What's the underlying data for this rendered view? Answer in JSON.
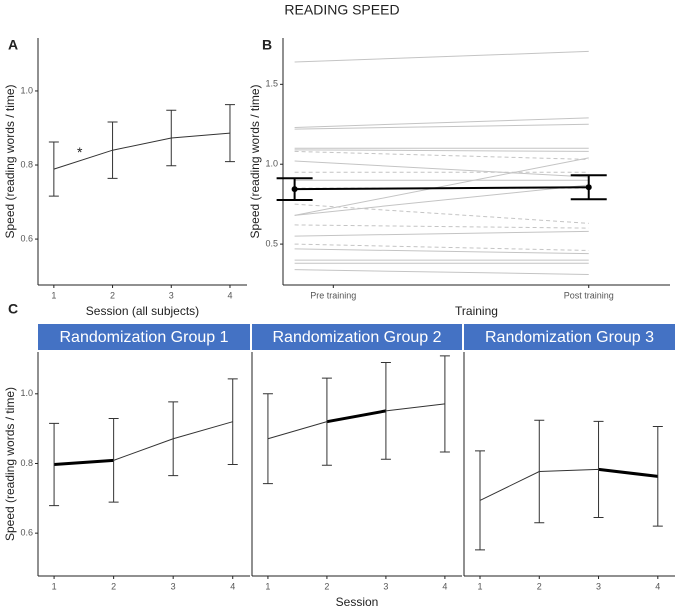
{
  "title": "READING SPEED",
  "chart_data": [
    {
      "type": "line",
      "panel": "A",
      "x": [
        1,
        2,
        3,
        4
      ],
      "values": [
        0.789,
        0.84,
        0.873,
        0.886
      ],
      "errors": [
        0.073,
        0.076,
        0.075,
        0.077
      ],
      "xlim": [
        0.73,
        4.29
      ],
      "xticks": [
        1,
        2,
        3,
        4
      ],
      "ylim": [
        0.476,
        1.143
      ],
      "yticks": [
        0.6,
        0.8,
        {
          "value": 1,
          "label": "1.0"
        }
      ],
      "xlabel": "Session (all subjects)",
      "ylabel": "Speed (reading words / time)",
      "annotation": {
        "text": "*",
        "x": 1.44,
        "y": 0.832
      },
      "color": "#333333"
    },
    {
      "type": "paired",
      "panel": "B",
      "categories": [
        "Pre training",
        "Post training"
      ],
      "values": [
        0.844,
        0.856
      ],
      "errors": [
        0.068,
        0.075
      ],
      "subjects": [
        {
          "values": [
            1.64,
            1.706
          ],
          "dashed": false
        },
        {
          "values": [
            1.23,
            1.29
          ],
          "dashed": false
        },
        {
          "values": [
            1.22,
            1.25
          ],
          "dashed": false
        },
        {
          "values": [
            1.1,
            1.1
          ],
          "dashed": false
        },
        {
          "values": [
            1.09,
            1.08
          ],
          "dashed": false
        },
        {
          "values": [
            1.08,
            1.03
          ],
          "dashed": true
        },
        {
          "values": [
            1.02,
            0.92
          ],
          "dashed": false
        },
        {
          "values": [
            0.95,
            0.95
          ],
          "dashed": true
        },
        {
          "values": [
            0.9,
            0.9
          ],
          "dashed": false
        },
        {
          "values": [
            0.85,
            0.85
          ],
          "dashed": true
        },
        {
          "values": [
            0.68,
            1.04
          ],
          "dashed": false
        },
        {
          "values": [
            0.68,
            0.87
          ],
          "dashed": false
        },
        {
          "values": [
            0.75,
            0.63
          ],
          "dashed": true
        },
        {
          "values": [
            0.62,
            0.6
          ],
          "dashed": true
        },
        {
          "values": [
            0.55,
            0.58
          ],
          "dashed": false
        },
        {
          "values": [
            0.5,
            0.46
          ],
          "dashed": true
        },
        {
          "values": [
            0.47,
            0.44
          ],
          "dashed": false
        },
        {
          "values": [
            0.4,
            0.4
          ],
          "dashed": false
        },
        {
          "values": [
            0.38,
            0.38
          ],
          "dashed": false
        },
        {
          "values": [
            0.34,
            0.31
          ],
          "dashed": false
        }
      ],
      "ylim": [
        0.244,
        1.79
      ],
      "yticks": [
        0.5,
        {
          "value": 1,
          "label": "1.0"
        },
        1.5
      ],
      "xlabel": "Training",
      "ylabel": "Speed (reading words / time)",
      "color": "#000000",
      "subject_color": "#c4c4c4"
    },
    {
      "type": "line",
      "panel": "C",
      "title": "Randomization Group 1",
      "x": [
        1,
        2,
        3,
        4
      ],
      "values": [
        0.797,
        0.809,
        0.871,
        0.92
      ],
      "errors": [
        0.118,
        0.12,
        0.106,
        0.123
      ],
      "bold_segment": [
        1,
        2
      ],
      "xlim": [
        0.73,
        4.29
      ],
      "xticks": [
        1,
        2,
        3,
        4
      ],
      "ylim": [
        0.477,
        1.12
      ],
      "yticks": [
        0.6,
        0.8,
        {
          "value": 1,
          "label": "1.0"
        }
      ],
      "ylabel": "Speed (reading words / time)",
      "color": "#333333",
      "header_color": "#4472c4"
    },
    {
      "type": "line",
      "title": "Randomization Group 2",
      "x": [
        1,
        2,
        3,
        4
      ],
      "values": [
        0.871,
        0.92,
        0.951,
        0.971
      ],
      "errors": [
        0.129,
        0.125,
        0.139,
        0.138
      ],
      "bold_segment": [
        2,
        3
      ],
      "xlim": [
        0.73,
        4.29
      ],
      "xticks": [
        1,
        2,
        3,
        4
      ],
      "ylim": [
        0.477,
        1.12
      ],
      "xlabel": "Session",
      "color": "#333333",
      "header_color": "#4472c4"
    },
    {
      "type": "line",
      "title": "Randomization Group 3",
      "x": [
        1,
        2,
        3,
        4
      ],
      "values": [
        0.694,
        0.777,
        0.783,
        0.763
      ],
      "errors": [
        0.142,
        0.147,
        0.138,
        0.143
      ],
      "bold_segment": [
        3,
        4
      ],
      "xlim": [
        0.73,
        4.29
      ],
      "xticks": [
        1,
        2,
        3,
        4
      ],
      "ylim": [
        0.477,
        1.12
      ],
      "color": "#333333",
      "header_color": "#4472c4"
    }
  ]
}
